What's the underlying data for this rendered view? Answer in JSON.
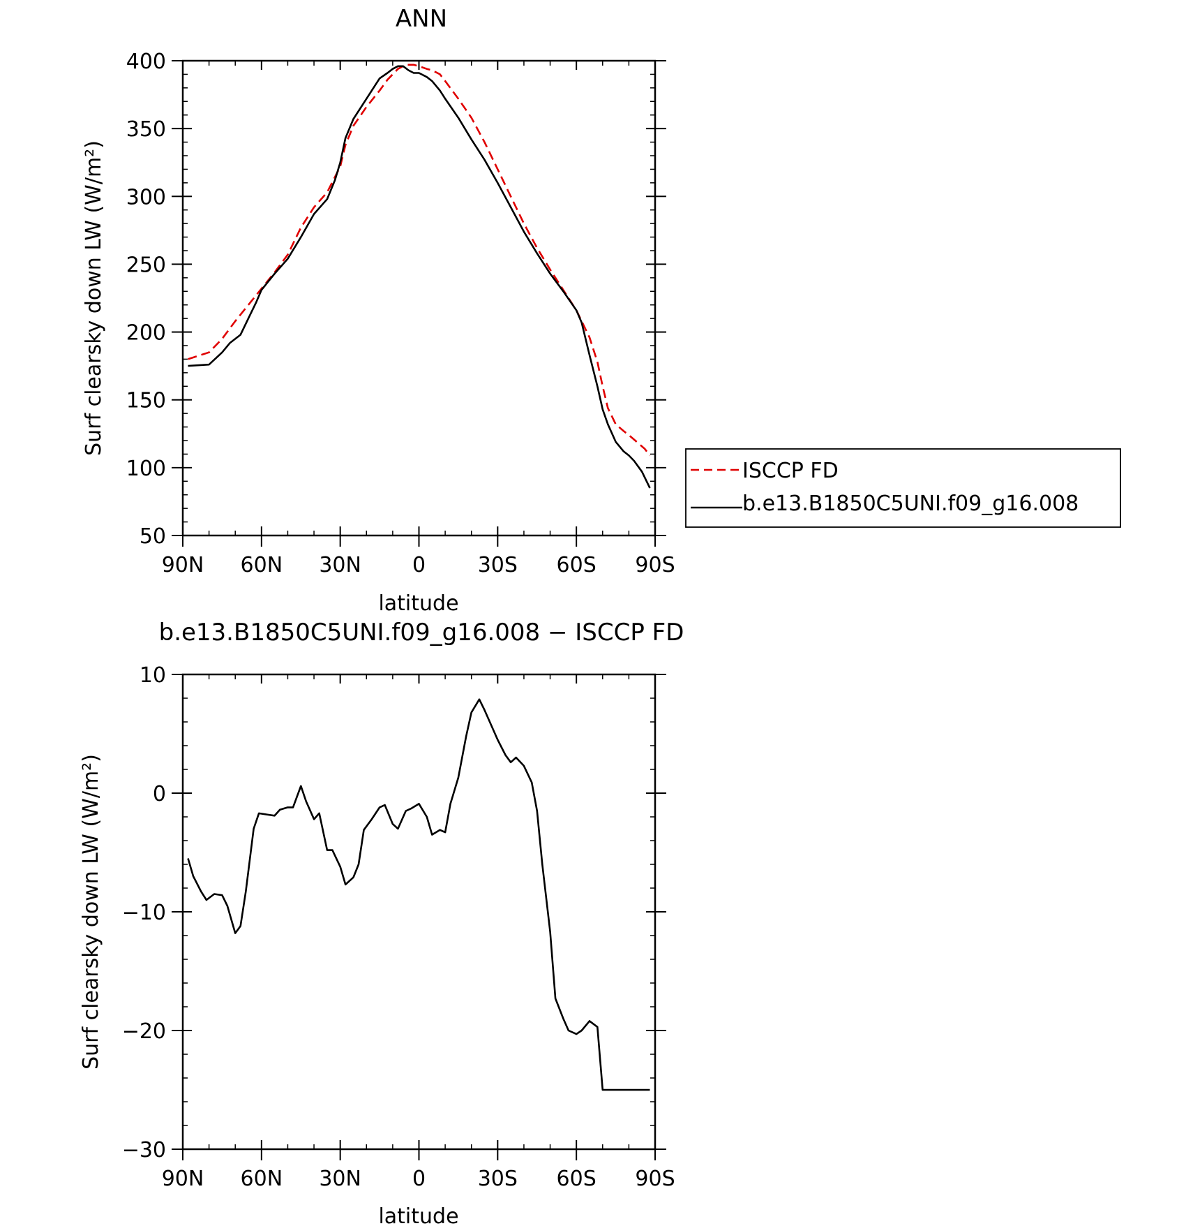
{
  "chart_data": [
    {
      "type": "line",
      "title": "ANN",
      "xlabel": "latitude",
      "ylabel": "Surf clearsky down LW (W/m²)",
      "x_axis": "latitude, 90N (left) to 90S (right)",
      "xlim": [
        90,
        -90
      ],
      "ylim": [
        50,
        400
      ],
      "xticks": [
        {
          "value": 90,
          "label": "90N"
        },
        {
          "value": 60,
          "label": "60N"
        },
        {
          "value": 30,
          "label": "30N"
        },
        {
          "value": 0,
          "label": "0"
        },
        {
          "value": -30,
          "label": "30S"
        },
        {
          "value": -60,
          "label": "60S"
        },
        {
          "value": -90,
          "label": "90S"
        }
      ],
      "yticks": [
        {
          "value": 50,
          "label": "50"
        },
        {
          "value": 100,
          "label": "100"
        },
        {
          "value": 150,
          "label": "150"
        },
        {
          "value": 200,
          "label": "200"
        },
        {
          "value": 250,
          "label": "250"
        },
        {
          "value": 300,
          "label": "300"
        },
        {
          "value": 350,
          "label": "350"
        },
        {
          "value": 400,
          "label": "400"
        }
      ],
      "legend": {
        "placement": "right",
        "entries": [
          "ISCCP FD",
          "b.e13.B1850C5UNI.f09_g16.008"
        ]
      },
      "series": [
        {
          "name": "ISCCP FD",
          "color": "#e00000",
          "style": "dashed",
          "x": [
            88,
            80,
            75,
            70,
            65,
            60,
            55,
            50,
            45,
            40,
            35,
            30,
            28,
            25,
            20,
            15,
            12,
            10,
            8,
            5,
            2,
            0,
            -3,
            -5,
            -8,
            -10,
            -15,
            -20,
            -25,
            -30,
            -35,
            -40,
            -45,
            -50,
            -55,
            -60,
            -65,
            -68,
            -70,
            -72,
            -75,
            -78,
            -80,
            -83,
            -86,
            -88
          ],
          "y": [
            180,
            185,
            195,
            208,
            220,
            232,
            244,
            257,
            277,
            292,
            303,
            322,
            338,
            352,
            366,
            378,
            386,
            390,
            394,
            397,
            397,
            396,
            394,
            393,
            390,
            385,
            372,
            358,
            340,
            320,
            300,
            280,
            262,
            246,
            231,
            216,
            196,
            178,
            160,
            144,
            132,
            127,
            124,
            119,
            114,
            109
          ]
        },
        {
          "name": "b.e13.B1850C5UNI.f09_g16.008",
          "color": "#000000",
          "style": "solid",
          "x": [
            88,
            80,
            75,
            72,
            68,
            65,
            62,
            60,
            55,
            50,
            45,
            40,
            35,
            32,
            30,
            28,
            25,
            20,
            15,
            12,
            10,
            8,
            6,
            4,
            2,
            0,
            -3,
            -5,
            -8,
            -10,
            -15,
            -20,
            -25,
            -30,
            -35,
            -40,
            -45,
            -50,
            -55,
            -60,
            -62,
            -65,
            -68,
            -70,
            -72,
            -75,
            -78,
            -80,
            -82,
            -85,
            -88
          ],
          "y": [
            175,
            176,
            185,
            192,
            198,
            210,
            222,
            231,
            243,
            254,
            270,
            287,
            298,
            312,
            325,
            343,
            357,
            372,
            387,
            391,
            394,
            396,
            396,
            393,
            391,
            391,
            388,
            385,
            378,
            372,
            358,
            342,
            327,
            310,
            292,
            274,
            258,
            243,
            230,
            216,
            207,
            183,
            160,
            143,
            132,
            119,
            112,
            109,
            105,
            97,
            85
          ]
        }
      ]
    },
    {
      "type": "line",
      "title": "b.e13.B1850C5UNI.f09_g16.008 − ISCCP FD",
      "xlabel": "latitude",
      "ylabel": "Surf clearsky down LW (W/m²)",
      "x_axis": "latitude, 90N (left) to 90S (right)",
      "xlim": [
        90,
        -90
      ],
      "ylim": [
        -30,
        10
      ],
      "xticks": [
        {
          "value": 90,
          "label": "90N"
        },
        {
          "value": 60,
          "label": "60N"
        },
        {
          "value": 30,
          "label": "30N"
        },
        {
          "value": 0,
          "label": "0"
        },
        {
          "value": -30,
          "label": "30S"
        },
        {
          "value": -60,
          "label": "60S"
        },
        {
          "value": -90,
          "label": "90S"
        }
      ],
      "yticks": [
        {
          "value": 10,
          "label": "10"
        },
        {
          "value": 0,
          "label": "0"
        },
        {
          "value": -10,
          "label": "−10"
        },
        {
          "value": -20,
          "label": "−20"
        },
        {
          "value": -30,
          "label": "−30"
        }
      ],
      "series": [
        {
          "color": "#000000",
          "style": "solid",
          "x": [
            88,
            86,
            83,
            81,
            78,
            75,
            73,
            70,
            68,
            66,
            63,
            61,
            58,
            55,
            53,
            50,
            48,
            45,
            43,
            40,
            38,
            35,
            33,
            30,
            28,
            25,
            23,
            21,
            18,
            15,
            13,
            10,
            8,
            5,
            3,
            0,
            -3,
            -5,
            -8,
            -10,
            -12,
            -15,
            -18,
            -20,
            -23,
            -25,
            -28,
            -30,
            -33,
            -35,
            -37,
            -40,
            -43,
            -45,
            -47,
            -50,
            -52,
            -55,
            -57,
            -60,
            -62,
            -65,
            -68,
            -70,
            -72,
            -75,
            -77,
            -80,
            -83,
            -85,
            -88
          ],
          "y": [
            -5.5,
            -7.0,
            -8.3,
            -9.0,
            -8.5,
            -8.6,
            -9.5,
            -11.8,
            -11.2,
            -8.3,
            -3.0,
            -1.7,
            -1.8,
            -1.9,
            -1.4,
            -1.2,
            -1.2,
            0.6,
            -0.7,
            -2.2,
            -1.7,
            -4.8,
            -4.8,
            -6.2,
            -7.7,
            -7.1,
            -6.0,
            -3.1,
            -2.2,
            -1.2,
            -1.0,
            -2.6,
            -3.0,
            -1.5,
            -1.3,
            -0.9,
            -2.0,
            -3.5,
            -3.1,
            -3.3,
            -0.9,
            1.3,
            4.8,
            6.8,
            7.9,
            7.0,
            5.5,
            4.5,
            3.2,
            2.6,
            3.0,
            2.3,
            0.9,
            -1.5,
            -6.0,
            -11.7,
            -17.3,
            -19.0,
            -20.0,
            -20.3,
            -20.0,
            -19.2,
            -19.7,
            -25.0,
            -25.0,
            -25.0,
            -25.0,
            -25.0,
            -25.0,
            -25.0,
            -25.0
          ]
        }
      ]
    }
  ]
}
